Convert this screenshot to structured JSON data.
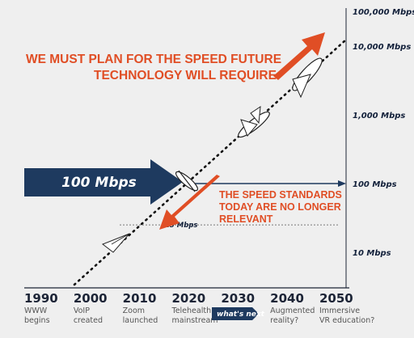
{
  "chart_data": {
    "type": "line",
    "title": "",
    "xlabel": "",
    "ylabel": "",
    "y_scale": "log",
    "y_tick_labels": [
      "10 Mbps",
      "100 Mbps",
      "1,000 Mbps",
      "10,000 Mbps",
      "100,000 Mbps"
    ],
    "y_tick_values": [
      10,
      100,
      1000,
      10000,
      100000
    ],
    "categories": [
      "1990",
      "2000",
      "2010",
      "2020",
      "2030",
      "2040",
      "2050"
    ],
    "events": [
      "WWW begins",
      "VoIP created",
      "Zoom launched",
      "Telehealth mainstream",
      "",
      "Augmented reality?",
      "Immersive VR education?"
    ],
    "series": [
      {
        "x": [
          1990,
          2000,
          2010,
          2020,
          2030,
          2040,
          2050
        ],
        "y": [
          2,
          5,
          14,
          40,
          200,
          1500,
          40000
        ]
      }
    ],
    "reference_lines": [
      {
        "value": 25,
        "label": "25 Mbps"
      },
      {
        "value": 100,
        "label": "100 Mbps"
      }
    ],
    "whats_next": "what's next",
    "headline": [
      "WE MUST PLAN FOR THE SPEED FUTURE",
      "TECHNOLOGY WILL REQUIRE"
    ],
    "standards_note": [
      "THE SPEED STANDARDS",
      "TODAY ARE NO LONGER",
      "RELEVANT"
    ],
    "colors": {
      "accent": "#e04e25",
      "navy": "#1e3a5f",
      "background": "#efefef",
      "text": "#1c2436"
    }
  }
}
